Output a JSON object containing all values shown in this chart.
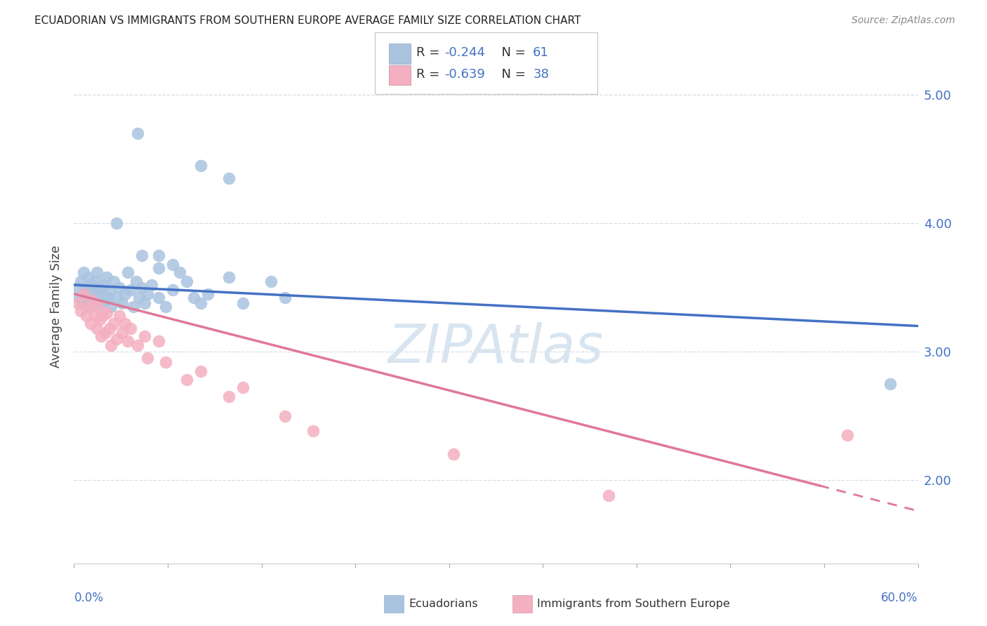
{
  "title": "ECUADORIAN VS IMMIGRANTS FROM SOUTHERN EUROPE AVERAGE FAMILY SIZE CORRELATION CHART",
  "source": "Source: ZipAtlas.com",
  "ylabel": "Average Family Size",
  "xlim": [
    0.0,
    0.6
  ],
  "ylim": [
    1.35,
    5.35
  ],
  "right_yticks": [
    2.0,
    3.0,
    4.0,
    5.0
  ],
  "blue_scatter": [
    [
      0.003,
      3.5
    ],
    [
      0.004,
      3.42
    ],
    [
      0.005,
      3.55
    ],
    [
      0.006,
      3.38
    ],
    [
      0.007,
      3.62
    ],
    [
      0.008,
      3.45
    ],
    [
      0.009,
      3.5
    ],
    [
      0.01,
      3.42
    ],
    [
      0.01,
      3.58
    ],
    [
      0.011,
      3.35
    ],
    [
      0.012,
      3.48
    ],
    [
      0.013,
      3.52
    ],
    [
      0.014,
      3.4
    ],
    [
      0.015,
      3.55
    ],
    [
      0.015,
      3.38
    ],
    [
      0.016,
      3.62
    ],
    [
      0.017,
      3.45
    ],
    [
      0.018,
      3.5
    ],
    [
      0.019,
      3.38
    ],
    [
      0.02,
      3.45
    ],
    [
      0.021,
      3.52
    ],
    [
      0.022,
      3.4
    ],
    [
      0.023,
      3.58
    ],
    [
      0.024,
      3.42
    ],
    [
      0.025,
      3.48
    ],
    [
      0.026,
      3.35
    ],
    [
      0.028,
      3.55
    ],
    [
      0.03,
      3.42
    ],
    [
      0.032,
      3.5
    ],
    [
      0.034,
      3.38
    ],
    [
      0.036,
      3.45
    ],
    [
      0.038,
      3.62
    ],
    [
      0.04,
      3.48
    ],
    [
      0.042,
      3.35
    ],
    [
      0.044,
      3.55
    ],
    [
      0.046,
      3.42
    ],
    [
      0.048,
      3.5
    ],
    [
      0.05,
      3.38
    ],
    [
      0.052,
      3.45
    ],
    [
      0.055,
      3.52
    ],
    [
      0.06,
      3.42
    ],
    [
      0.065,
      3.35
    ],
    [
      0.07,
      3.48
    ],
    [
      0.08,
      3.55
    ],
    [
      0.085,
      3.42
    ],
    [
      0.09,
      3.38
    ],
    [
      0.095,
      3.45
    ],
    [
      0.11,
      3.58
    ],
    [
      0.12,
      3.38
    ],
    [
      0.14,
      3.55
    ],
    [
      0.15,
      3.42
    ],
    [
      0.048,
      3.75
    ],
    [
      0.06,
      3.75
    ],
    [
      0.06,
      3.65
    ],
    [
      0.07,
      3.68
    ],
    [
      0.075,
      3.62
    ],
    [
      0.03,
      4.0
    ],
    [
      0.09,
      4.45
    ],
    [
      0.11,
      4.35
    ],
    [
      0.045,
      4.7
    ],
    [
      0.58,
      2.75
    ]
  ],
  "pink_scatter": [
    [
      0.003,
      3.38
    ],
    [
      0.005,
      3.32
    ],
    [
      0.007,
      3.45
    ],
    [
      0.009,
      3.28
    ],
    [
      0.011,
      3.35
    ],
    [
      0.012,
      3.22
    ],
    [
      0.013,
      3.4
    ],
    [
      0.015,
      3.28
    ],
    [
      0.016,
      3.18
    ],
    [
      0.017,
      3.35
    ],
    [
      0.018,
      3.25
    ],
    [
      0.019,
      3.12
    ],
    [
      0.02,
      3.28
    ],
    [
      0.022,
      3.15
    ],
    [
      0.023,
      3.3
    ],
    [
      0.025,
      3.18
    ],
    [
      0.026,
      3.05
    ],
    [
      0.028,
      3.22
    ],
    [
      0.03,
      3.1
    ],
    [
      0.032,
      3.28
    ],
    [
      0.034,
      3.15
    ],
    [
      0.036,
      3.22
    ],
    [
      0.038,
      3.08
    ],
    [
      0.04,
      3.18
    ],
    [
      0.045,
      3.05
    ],
    [
      0.05,
      3.12
    ],
    [
      0.052,
      2.95
    ],
    [
      0.06,
      3.08
    ],
    [
      0.065,
      2.92
    ],
    [
      0.08,
      2.78
    ],
    [
      0.09,
      2.85
    ],
    [
      0.11,
      2.65
    ],
    [
      0.12,
      2.72
    ],
    [
      0.15,
      2.5
    ],
    [
      0.17,
      2.38
    ],
    [
      0.27,
      2.2
    ],
    [
      0.38,
      1.88
    ],
    [
      0.55,
      2.35
    ]
  ],
  "blue_color": "#aac4e0",
  "pink_color": "#f4afc0",
  "blue_line_color": "#4472c4",
  "pink_line_color": "#e07898",
  "background_color": "#ffffff",
  "grid_color": "#d5dde8",
  "watermark": "ZIPAtlas",
  "watermark_color": "#d8e5f0",
  "legend_r1_val": "-0.244",
  "legend_n1_val": "61",
  "legend_r2_val": "-0.639",
  "legend_n2_val": "38",
  "text_dark": "#333333",
  "text_blue": "#4472c4"
}
